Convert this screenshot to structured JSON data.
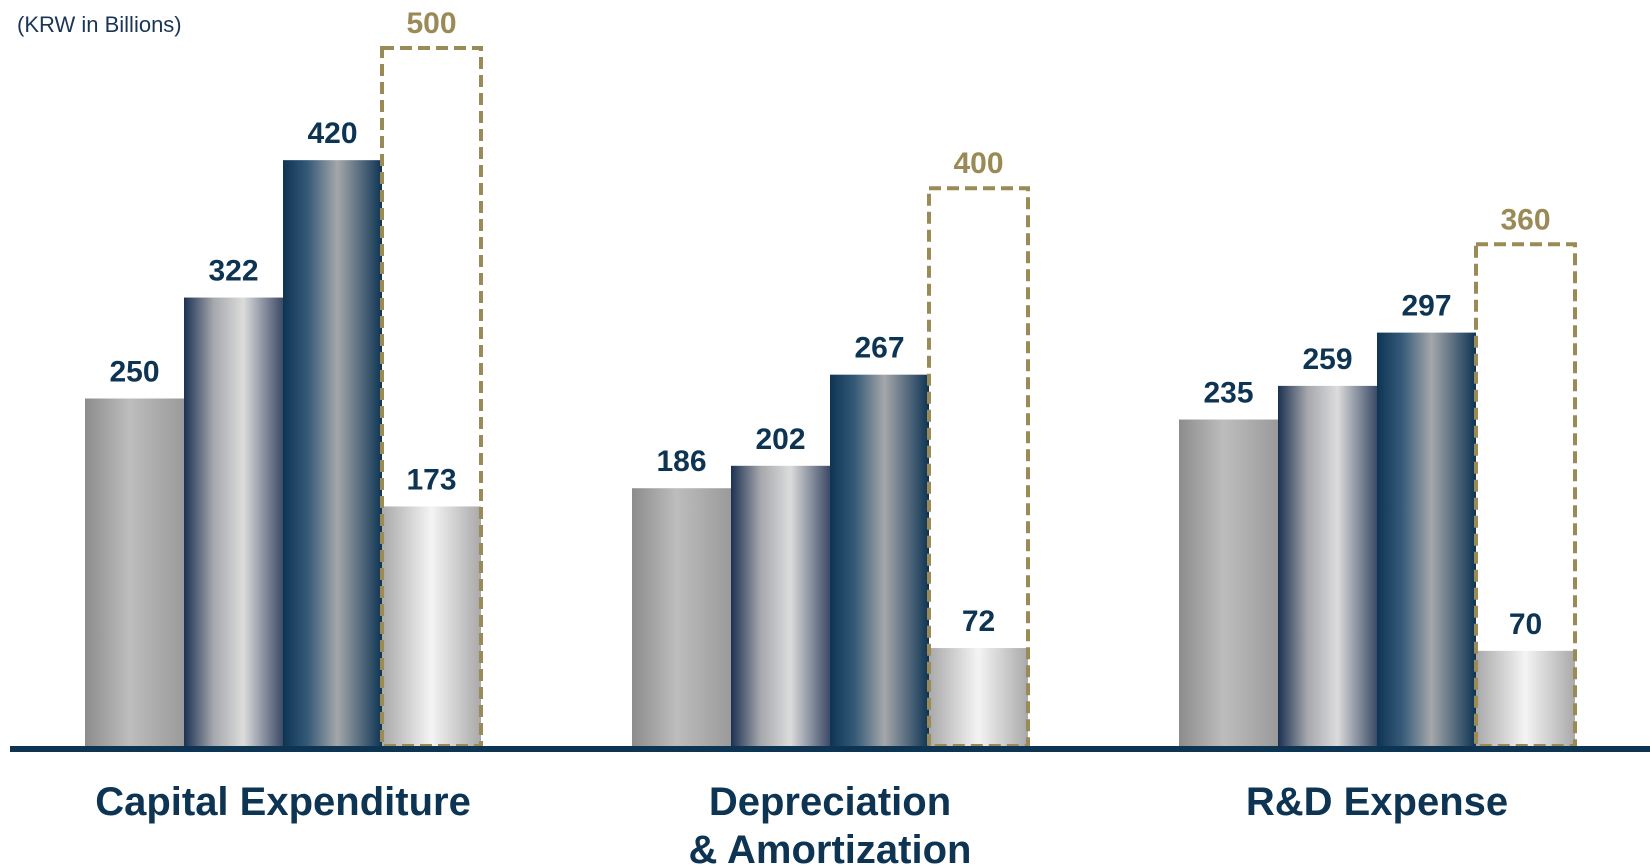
{
  "chart_data": {
    "type": "bar",
    "unit_label": "(KRW in Billions)",
    "categories": [
      [
        "Capital Expenditure"
      ],
      [
        "Depreciation",
        "& Amortization"
      ],
      [
        "R&D Expense"
      ]
    ],
    "series": [
      {
        "values": [
          250,
          186,
          235
        ]
      },
      {
        "values": [
          322,
          202,
          259
        ]
      },
      {
        "values": [
          420,
          267,
          297
        ]
      },
      {
        "values": [
          173,
          72,
          70
        ]
      }
    ],
    "targets": [
      500,
      400,
      360
    ],
    "ylim": [
      0,
      560
    ],
    "colors": {
      "axis": "#0e3454",
      "value_text": "#0e3454",
      "target": "#9a8a55"
    }
  }
}
